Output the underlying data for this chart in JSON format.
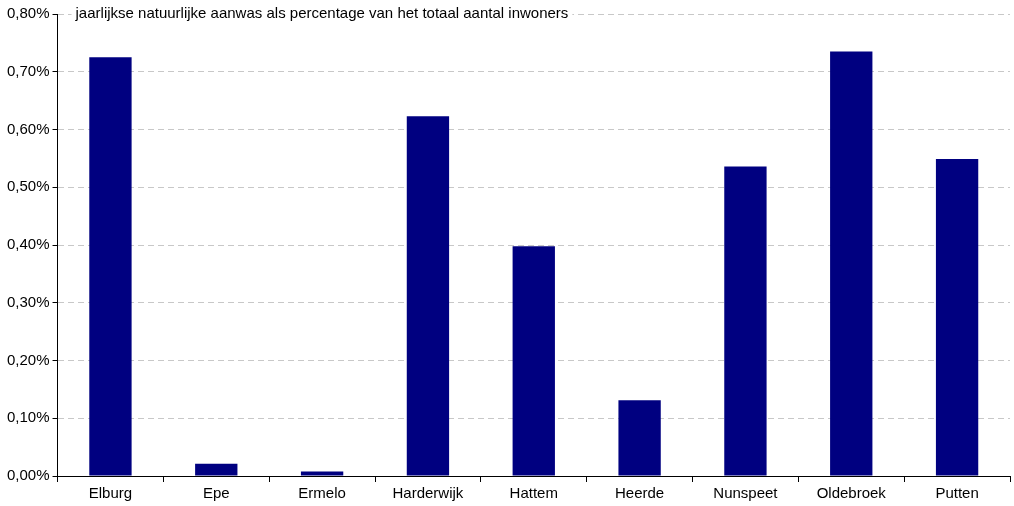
{
  "chart_data": {
    "type": "bar",
    "title": "jaarlijkse natuurlijke aanwas als percentage van het totaal aantal inwoners",
    "categories": [
      "Elburg",
      "Epe",
      "Ermelo",
      "Harderwijk",
      "Hattem",
      "Heerde",
      "Nunspeet",
      "Oldebroek",
      "Putten"
    ],
    "values": [
      0.725,
      0.021,
      0.008,
      0.623,
      0.398,
      0.131,
      0.536,
      0.735,
      0.549
    ],
    "color": "#000080",
    "ylim": [
      0,
      0.8
    ],
    "yticks": [
      {
        "value": 0,
        "label": "0,00%"
      },
      {
        "value": 0.1,
        "label": "0,10%"
      },
      {
        "value": 0.2,
        "label": "0,20%"
      },
      {
        "value": 0.3,
        "label": "0,30%"
      },
      {
        "value": 0.4,
        "label": "0,40%"
      },
      {
        "value": 0.5,
        "label": "0,50%"
      },
      {
        "value": 0.6,
        "label": "0,60%"
      },
      {
        "value": 0.7,
        "label": "0,70%"
      },
      {
        "value": 0.8,
        "label": "0,80%"
      }
    ],
    "grid": "y",
    "legend": false
  }
}
